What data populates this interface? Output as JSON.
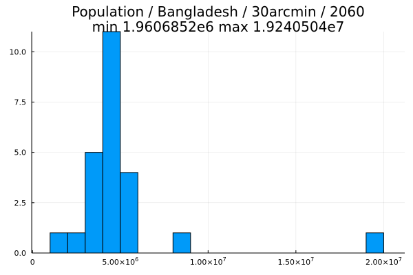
{
  "chart_data": {
    "type": "bar",
    "title_line1": "Population / Bangladesh / 30arcmin / 2060",
    "title_line2": "min 1.9606852e6  max 1.9240504e7",
    "xlabel": "",
    "ylabel": "",
    "bin_width": 1000000,
    "bins": [
      {
        "start": 1000000,
        "end": 2000000,
        "count": 1
      },
      {
        "start": 2000000,
        "end": 3000000,
        "count": 1
      },
      {
        "start": 3000000,
        "end": 4000000,
        "count": 5
      },
      {
        "start": 4000000,
        "end": 5000000,
        "count": 11
      },
      {
        "start": 5000000,
        "end": 6000000,
        "count": 4
      },
      {
        "start": 8000000,
        "end": 9000000,
        "count": 1
      },
      {
        "start": 19000000,
        "end": 20000000,
        "count": 1
      }
    ],
    "xlim": [
      -50000,
      21200000
    ],
    "ylim": [
      0,
      11
    ],
    "x_ticks": [
      {
        "value": 0,
        "mantissa": "0",
        "exponent": ""
      },
      {
        "value": 5000000,
        "mantissa": "5.00×10",
        "exponent": "6"
      },
      {
        "value": 10000000,
        "mantissa": "1.00×10",
        "exponent": "7"
      },
      {
        "value": 15000000,
        "mantissa": "1.50×10",
        "exponent": "7"
      },
      {
        "value": 20000000,
        "mantissa": "2.00×10",
        "exponent": "7"
      }
    ],
    "y_ticks": [
      {
        "value": 0,
        "label": "0.0"
      },
      {
        "value": 2.5,
        "label": "2.5"
      },
      {
        "value": 5,
        "label": "5.0"
      },
      {
        "value": 7.5,
        "label": "7.5"
      },
      {
        "value": 10,
        "label": "10.0"
      }
    ],
    "grid": true,
    "legend": "none",
    "colors": {
      "bar_fill": "#009af9",
      "bar_stroke": "#000000"
    }
  }
}
